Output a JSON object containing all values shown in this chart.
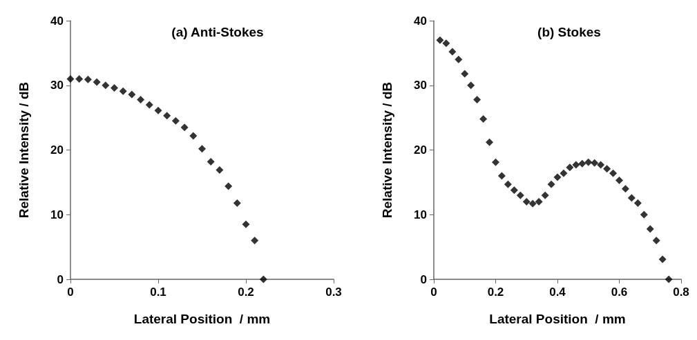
{
  "chart_data": [
    {
      "type": "scatter",
      "title": "(a) Anti-Stokes",
      "xlabel": "Lateral Position  / mm",
      "ylabel": "Relative Intensity / dB",
      "marker": "diamond",
      "xlim": [
        0,
        0.3
      ],
      "xticks": [
        0,
        0.1,
        0.2,
        0.3
      ],
      "ylim": [
        0,
        40
      ],
      "yticks": [
        0,
        10,
        20,
        30,
        40
      ],
      "series": [
        {
          "color": "#000000",
          "x": [
            0,
            0.01,
            0.02,
            0.03,
            0.04,
            0.05,
            0.06,
            0.07,
            0.08,
            0.09,
            0.1,
            0.11,
            0.12,
            0.13,
            0.14,
            0.15,
            0.16,
            0.17,
            0.18,
            0.19,
            0.2,
            0.21,
            0.22
          ],
          "values": [
            31,
            31,
            30.9,
            30.5,
            30,
            29.6,
            29.1,
            28.6,
            27.8,
            27,
            26.1,
            25.3,
            24.5,
            23.5,
            22.2,
            20.2,
            18.2,
            16.9,
            14.4,
            11.8,
            8.5,
            6,
            0
          ]
        }
      ]
    },
    {
      "type": "scatter",
      "title": "(b) Stokes",
      "xlabel": "Lateral Position  / mm",
      "ylabel": "Relative Intensity / dB",
      "marker": "diamond",
      "xlim": [
        0,
        0.8
      ],
      "xticks": [
        0,
        0.2,
        0.4,
        0.6,
        0.8
      ],
      "ylim": [
        0,
        40
      ],
      "yticks": [
        0,
        10,
        20,
        30,
        40
      ],
      "series": [
        {
          "color": "#000000",
          "x": [
            0.02,
            0.04,
            0.06,
            0.08,
            0.1,
            0.12,
            0.14,
            0.16,
            0.18,
            0.2,
            0.22,
            0.24,
            0.26,
            0.28,
            0.3,
            0.32,
            0.34,
            0.36,
            0.38,
            0.4,
            0.42,
            0.44,
            0.46,
            0.48,
            0.5,
            0.52,
            0.54,
            0.56,
            0.58,
            0.6,
            0.62,
            0.64,
            0.66,
            0.68,
            0.7,
            0.72,
            0.74,
            0.76
          ],
          "values": [
            37,
            36.5,
            35.2,
            34,
            31.8,
            30,
            27.8,
            24.8,
            21.2,
            18.1,
            16,
            14.7,
            13.8,
            13,
            12,
            11.7,
            12,
            13,
            14.7,
            15.8,
            16.4,
            17.3,
            17.7,
            17.9,
            18.1,
            18,
            17.7,
            17.1,
            16.4,
            15.3,
            14,
            12.6,
            11.8,
            10,
            7.8,
            6,
            3.1,
            0
          ]
        }
      ]
    }
  ]
}
